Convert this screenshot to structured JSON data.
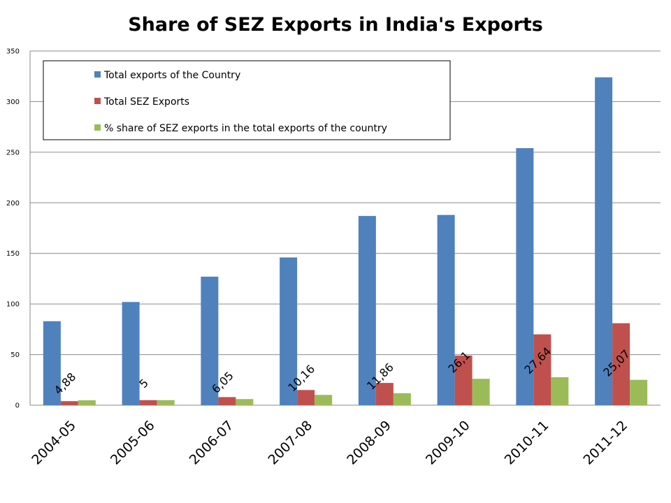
{
  "chart_data": {
    "type": "bar",
    "title": "Share of SEZ Exports in India's Exports",
    "xlabel": "",
    "ylabel": "",
    "ylim": [
      0,
      350
    ],
    "yticks": [
      0,
      50,
      100,
      150,
      200,
      250,
      300,
      350
    ],
    "grid": true,
    "legend_position": "top-left",
    "categories": [
      "2004-05",
      "2005-06",
      "2006-07",
      "2007-08",
      "2008-09",
      "2009-10",
      "2010-11",
      "2011-12"
    ],
    "series": [
      {
        "name": "Total exports of the Country",
        "color": "#4f81bd",
        "values": [
          83,
          102,
          127,
          146,
          187,
          188,
          254,
          324
        ]
      },
      {
        "name": "Total SEZ Exports",
        "color": "#c0504d",
        "values": [
          4,
          5,
          8,
          15,
          22,
          49,
          70,
          81
        ]
      },
      {
        "name": "% share of SEZ exports in the total exports of the country",
        "color": "#9bbb59",
        "values": [
          4.88,
          5,
          6.05,
          10.16,
          11.86,
          26.1,
          27.64,
          25.07
        ],
        "data_labels": [
          "4,88",
          "5",
          "6,05",
          "10,16",
          "11,86",
          "26,1",
          "27,64",
          "25,07"
        ]
      }
    ]
  }
}
